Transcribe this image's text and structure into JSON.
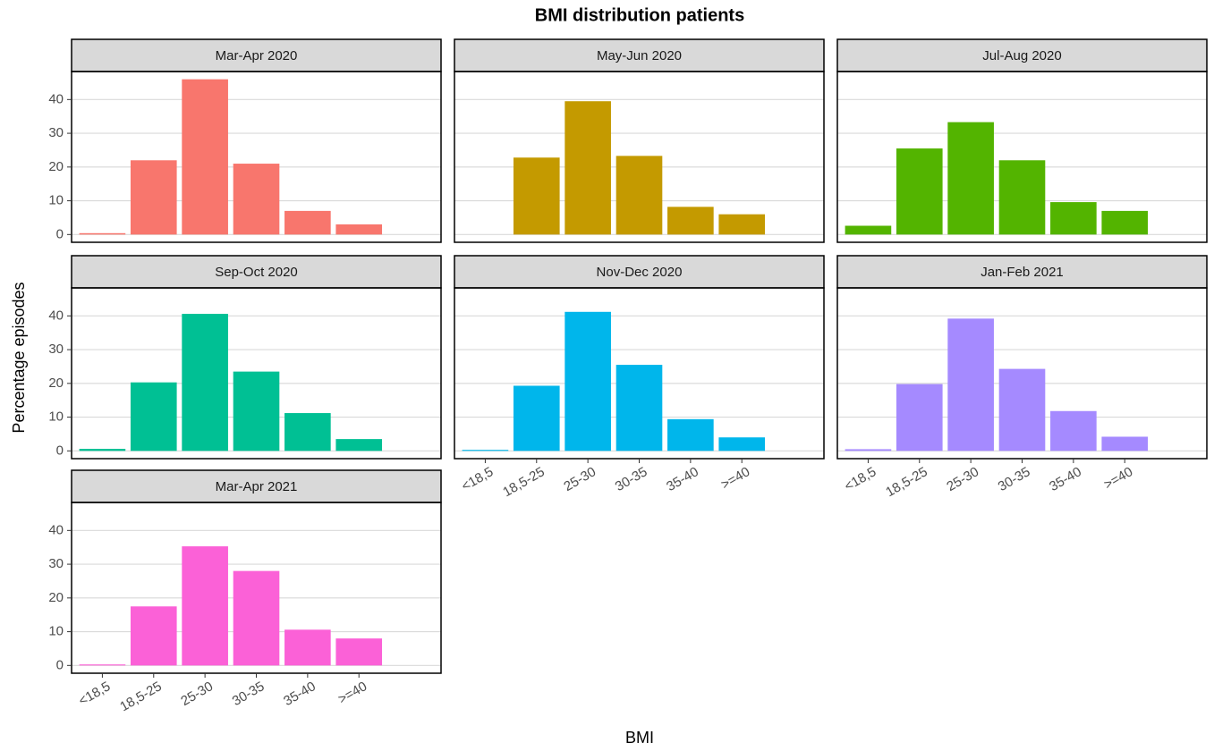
{
  "chart_data": {
    "type": "bar",
    "title": "BMI distribution patients",
    "x_label": "BMI",
    "y_label": "Percentage episodes",
    "categories": [
      "<18,5",
      "18,5-25",
      "25-30",
      "30-35",
      "35-40",
      ">=40"
    ],
    "series": [
      {
        "name": "Mar-Apr 2020",
        "color": "#F8766D",
        "values": [
          0.4,
          22,
          46,
          21,
          7,
          3
        ]
      },
      {
        "name": "May-Jun 2020",
        "color": "#C49A00",
        "values": [
          0,
          22.8,
          39.5,
          23.3,
          8.2,
          6
        ]
      },
      {
        "name": "Jul-Aug 2020",
        "color": "#53B400",
        "values": [
          2.6,
          25.5,
          33.3,
          22,
          9.6,
          7
        ]
      },
      {
        "name": "Sep-Oct 2020",
        "color": "#00C094",
        "values": [
          0.6,
          20.3,
          40.6,
          23.5,
          11.2,
          3.5
        ]
      },
      {
        "name": "Nov-Dec 2020",
        "color": "#00B6EB",
        "values": [
          0.3,
          19.3,
          41.2,
          25.5,
          9.4,
          4
        ]
      },
      {
        "name": "Jan-Feb 2021",
        "color": "#A58AFF",
        "values": [
          0.5,
          19.8,
          39.2,
          24.3,
          11.8,
          4.2
        ]
      },
      {
        "name": "Mar-Apr 2021",
        "color": "#FB61D7",
        "values": [
          0.3,
          17.5,
          35.3,
          28,
          10.6,
          8
        ]
      }
    ],
    "ylim": [
      -2.3,
      48.3
    ],
    "yticks": [
      0,
      10,
      20,
      30,
      40
    ],
    "grid": true
  }
}
